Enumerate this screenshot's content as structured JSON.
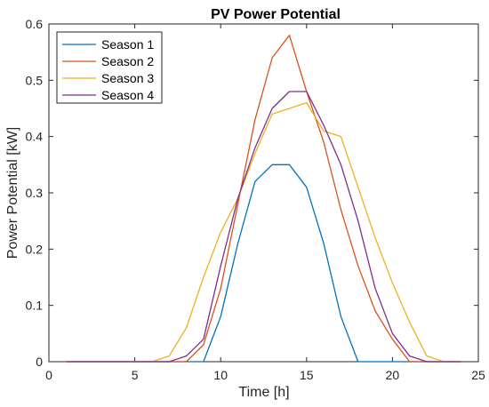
{
  "chart_data": {
    "type": "line",
    "title": "PV Power Potential",
    "xlabel": "Time [h]",
    "ylabel": "Power Potential [kW]",
    "xlim": [
      0,
      25
    ],
    "ylim": [
      0,
      0.6
    ],
    "xticks": [
      0,
      5,
      10,
      15,
      20,
      25
    ],
    "yticks": [
      0,
      0.1,
      0.2,
      0.3,
      0.4,
      0.5,
      0.6
    ],
    "grid": false,
    "legend_position": "top-left",
    "x": [
      1,
      2,
      3,
      4,
      5,
      6,
      7,
      8,
      9,
      10,
      11,
      12,
      13,
      14,
      15,
      16,
      17,
      18,
      19,
      20,
      21,
      22,
      23,
      24
    ],
    "series": [
      {
        "name": "Season 1",
        "color": "#0072BD",
        "values": [
          0,
          0,
          0,
          0,
          0,
          0,
          0,
          0,
          0,
          0.08,
          0.21,
          0.32,
          0.35,
          0.35,
          0.31,
          0.21,
          0.08,
          0,
          0,
          0,
          0,
          0,
          0,
          0
        ]
      },
      {
        "name": "Season 2",
        "color": "#D95319",
        "values": [
          0,
          0,
          0,
          0,
          0,
          0,
          0,
          0,
          0.03,
          0.13,
          0.28,
          0.43,
          0.54,
          0.58,
          0.48,
          0.39,
          0.27,
          0.17,
          0.09,
          0.04,
          0,
          0,
          0,
          0
        ]
      },
      {
        "name": "Season 3",
        "color": "#EDB120",
        "values": [
          0,
          0,
          0,
          0,
          0,
          0,
          0.01,
          0.06,
          0.15,
          0.23,
          0.29,
          0.37,
          0.44,
          0.45,
          0.46,
          0.41,
          0.4,
          0.31,
          0.22,
          0.14,
          0.07,
          0.01,
          0,
          0
        ]
      },
      {
        "name": "Season 4",
        "color": "#7E2F8E",
        "values": [
          0,
          0,
          0,
          0,
          0,
          0,
          0,
          0.01,
          0.04,
          0.17,
          0.29,
          0.38,
          0.45,
          0.48,
          0.48,
          0.42,
          0.35,
          0.25,
          0.13,
          0.05,
          0.01,
          0,
          0,
          0
        ]
      }
    ]
  }
}
